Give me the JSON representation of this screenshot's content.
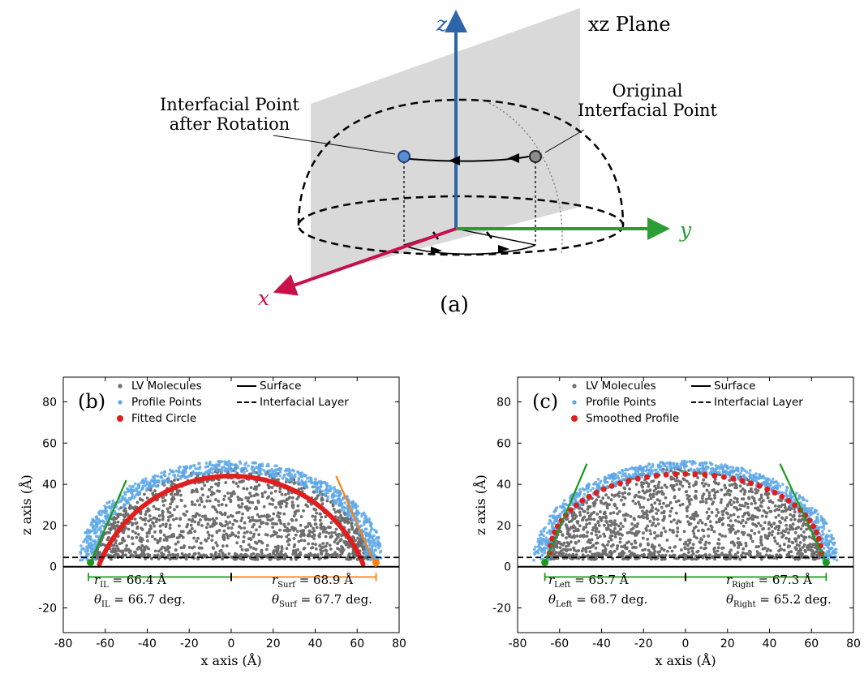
{
  "diagram": {
    "z_label": "z",
    "y_label": "y",
    "x_label": "x",
    "plane_label": "xz Plane",
    "after_label_1": "Interfacial Point",
    "after_label_2": "after Rotation",
    "orig_label_1": "Original",
    "orig_label_2": "Interfacial Point",
    "caption": "(a)",
    "colors": {
      "z_axis": "#2e64a8",
      "y_axis": "#2a9d34",
      "x_axis": "#c8104a",
      "plane": "#d9d9d9",
      "rotated_point": "#5b8fd1",
      "original_point": "#8c8c8c"
    }
  },
  "chart_data": [
    {
      "type": "scatter",
      "panel_label": "(b)",
      "xlabel": "x axis (Å)",
      "ylabel": "z axis (Å)",
      "xlim": [
        -80,
        80
      ],
      "ylim": [
        -32,
        92
      ],
      "xticks": [
        -80,
        -60,
        -40,
        -20,
        0,
        20,
        40,
        60,
        80
      ],
      "yticks": [
        -20,
        0,
        20,
        40,
        60,
        80
      ],
      "surface_z": 0,
      "interfacial_layer_z": 4.5,
      "legend": [
        "LV Molecules",
        "Surface",
        "Profile Points",
        "Interfacial Layer",
        "Fitted Circle"
      ],
      "circle": {
        "center_x": 0,
        "center_z": -23.5,
        "radius": 67.5
      },
      "drop_radius_r": 66,
      "drop_height": 48,
      "left_tangent": {
        "x": [
          -67,
          -50
        ],
        "z": [
          2,
          42
        ],
        "color": "#1a9a1a"
      },
      "right_tangent": {
        "x": [
          50,
          69
        ],
        "z": [
          44,
          0
        ],
        "color": "#ff7f0e"
      },
      "left_bar": {
        "x": [
          -68,
          0
        ],
        "z": -5,
        "color": "#1a9a1a"
      },
      "right_bar": {
        "x": [
          0,
          69
        ],
        "z": -5,
        "color": "#ff7f0e"
      },
      "left_annot": [
        "r_IL = 66.4 Å",
        "θ_IL = 66.7 deg."
      ],
      "right_annot": [
        "r_Surf = 68.9 Å",
        "θ_Surf = 67.7 deg."
      ],
      "left_r_sym": "r",
      "left_r_sub": "IL",
      "left_r_val": " = 66.4 Å",
      "left_t_sym": "θ",
      "left_t_sub": "IL",
      "left_t_val": " = 66.7 deg.",
      "right_r_sym": "r",
      "right_r_sub": "Surf",
      "right_r_val": " = 68.9 Å",
      "right_t_sym": "θ",
      "right_t_sub": "Surf",
      "right_t_val": " = 67.7 deg.",
      "left_contact_x": -67,
      "right_contact_x": 69,
      "left_contact_color": "#1a9a1a",
      "right_contact_color": "#ff7f0e",
      "smoothed": false
    },
    {
      "type": "scatter",
      "panel_label": "(c)",
      "xlabel": "x axis (Å)",
      "ylabel": "z axis (Å)",
      "xlim": [
        -80,
        80
      ],
      "ylim": [
        -32,
        92
      ],
      "xticks": [
        -80,
        -60,
        -40,
        -20,
        0,
        20,
        40,
        60,
        80
      ],
      "yticks": [
        -20,
        0,
        20,
        40,
        60,
        80
      ],
      "surface_z": 0,
      "interfacial_layer_z": 4.5,
      "legend": [
        "LV Molecules",
        "Surface",
        "Profile Points",
        "Interfacial Layer",
        "Smoothed Profile"
      ],
      "circle": {
        "center_x": 0,
        "center_z": -23.5,
        "radius": 67.5
      },
      "drop_radius_r": 66,
      "drop_height": 48,
      "left_tangent": {
        "x": [
          -67,
          -47
        ],
        "z": [
          2,
          50
        ],
        "color": "#1a9a1a"
      },
      "right_tangent": {
        "x": [
          45,
          67
        ],
        "z": [
          50,
          2
        ],
        "color": "#1a9a1a"
      },
      "left_bar": {
        "x": [
          -67,
          0
        ],
        "z": -5,
        "color": "#1a9a1a"
      },
      "right_bar": {
        "x": [
          0,
          67
        ],
        "z": -5,
        "color": "#1a9a1a"
      },
      "left_annot": [
        "r_Left = 65.7 Å",
        "θ_Left = 68.7 deg."
      ],
      "right_annot": [
        "r_Right = 67.3 Å",
        "θ_Right = 65.2 deg."
      ],
      "left_r_sym": "r",
      "left_r_sub": "Left",
      "left_r_val": " = 65.7 Å",
      "left_t_sym": "θ",
      "left_t_sub": "Left",
      "left_t_val": " = 68.7 deg.",
      "right_r_sym": "r",
      "right_r_sub": "Right",
      "right_r_val": " = 67.3 Å",
      "right_t_sym": "θ",
      "right_t_sub": "Right",
      "right_t_val": " = 65.2 deg.",
      "left_contact_x": -67,
      "right_contact_x": 67,
      "left_contact_color": "#1a9a1a",
      "right_contact_color": "#1a9a1a",
      "smoothed": true
    }
  ],
  "colors": {
    "lv": "#6e6e6e",
    "profile": "#5da8e8",
    "fit": "#e01e1e"
  }
}
